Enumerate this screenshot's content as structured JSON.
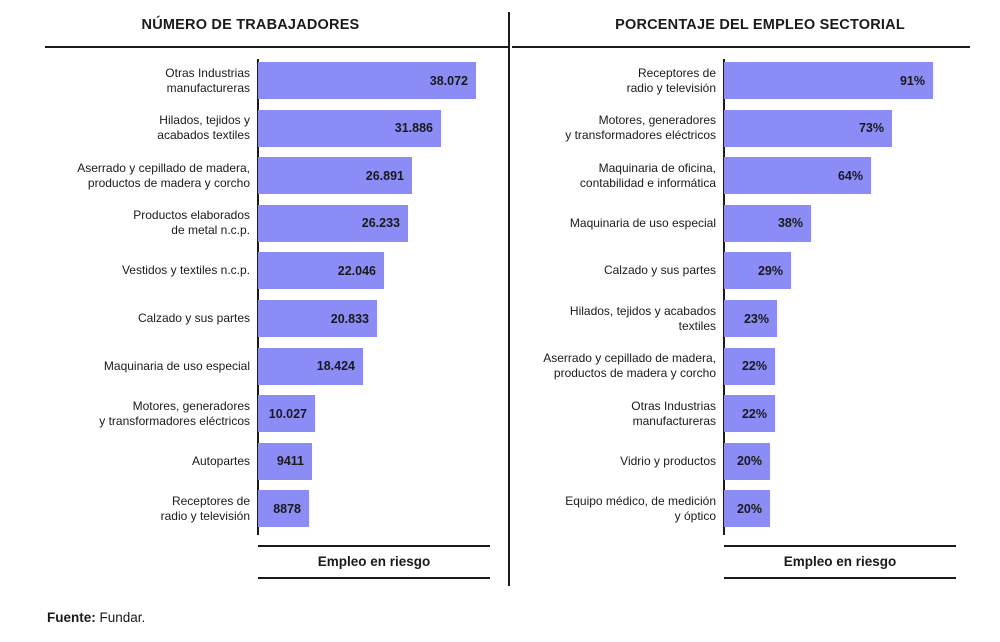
{
  "source": {
    "label": "Fuente:",
    "text": " Fundar."
  },
  "chart_data": [
    {
      "type": "bar",
      "orientation": "horizontal",
      "title": "NÚMERO DE TRABAJADORES",
      "footer_label": "Empleo en riesgo",
      "categories": [
        "Otras Industrias\nmanufactureras",
        "Hilados, tejidos y\nacabados textiles",
        "Aserrado y cepillado de madera,\nproductos de madera y corcho",
        "Productos elaborados\nde metal n.c.p.",
        "Vestidos y textiles n.c.p.",
        "Calzado y sus partes",
        "Maquinaria de uso especial",
        "Motores, generadores\ny transformadores eléctricos",
        "Autopartes",
        "Receptores de\nradio y televisión"
      ],
      "values": [
        38072,
        31886,
        26891,
        26233,
        22046,
        20833,
        18424,
        10027,
        9411,
        8878
      ],
      "value_labels": [
        "38.072",
        "31.886",
        "26.891",
        "26.233",
        "22.046",
        "20.833",
        "18.424",
        "10.027",
        "9411",
        "8878"
      ],
      "color": "#8b8cf5"
    },
    {
      "type": "bar",
      "orientation": "horizontal",
      "title": "PORCENTAJE DEL EMPLEO SECTORIAL",
      "footer_label": "Empleo en riesgo",
      "categories": [
        "Receptores de\nradio y televisión",
        "Motores, generadores\ny transformadores eléctricos",
        "Maquinaria  de oficina,\ncontabilidad e informática",
        "Maquinaria de uso especial",
        "Calzado y sus partes",
        "Hilados, tejidos y acabados\ntextiles",
        "Aserrado y cepillado de madera,\nproductos de madera y corcho",
        "Otras Industrias\nmanufactureras",
        "Vidrio y productos",
        "Equipo médico, de medición\ny óptico"
      ],
      "values": [
        91,
        73,
        64,
        38,
        29,
        23,
        22,
        22,
        20,
        20
      ],
      "value_labels": [
        "91%",
        "73%",
        "64%",
        "38%",
        "29%",
        "23%",
        "22%",
        "22%",
        "20%",
        "20%"
      ],
      "color": "#8b8cf5"
    }
  ]
}
